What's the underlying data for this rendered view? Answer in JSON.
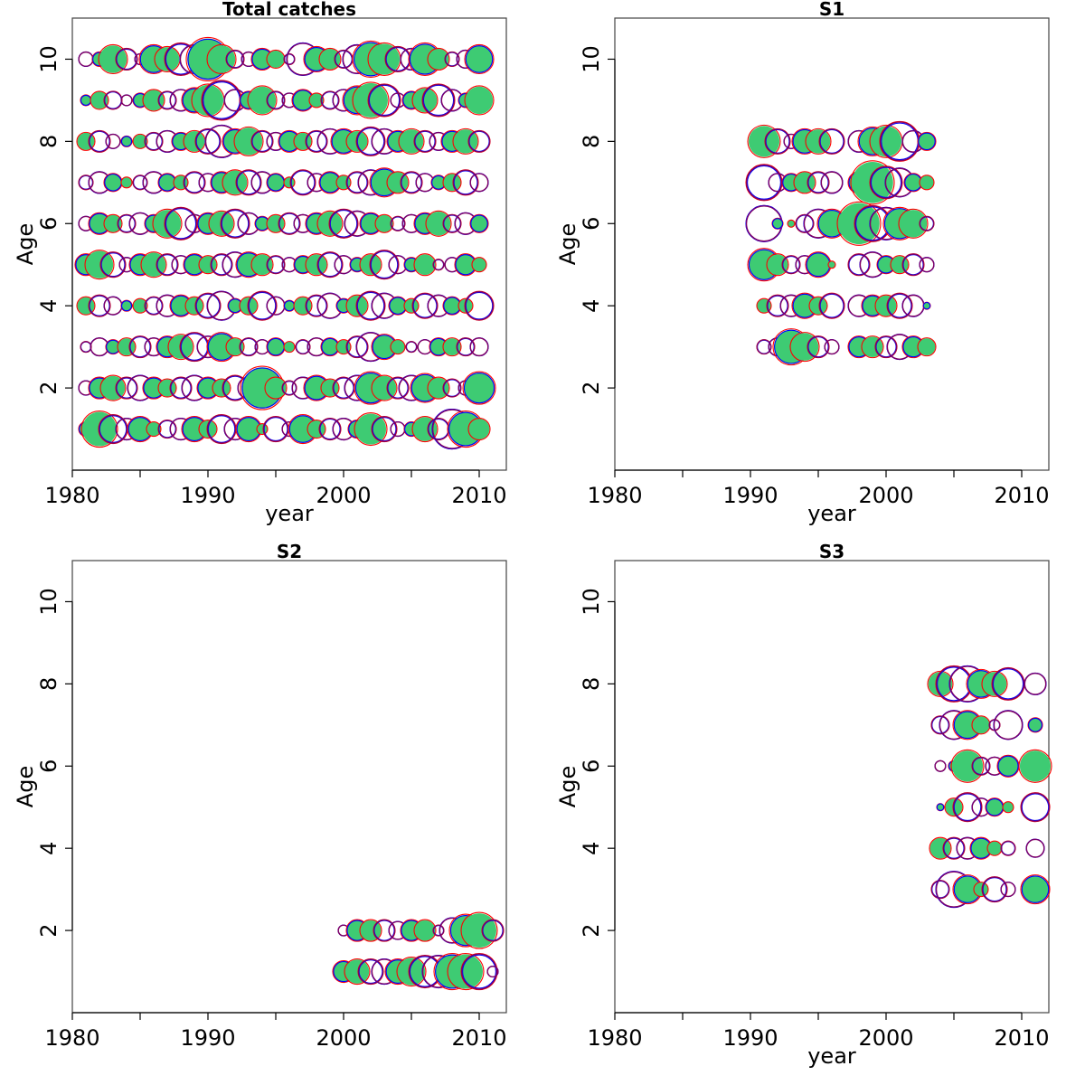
{
  "colors": {
    "filled": "#3ecb73",
    "observed": "#0000ff",
    "predicted": "#ff0000",
    "overlap": "#800060"
  },
  "chart_data": [
    {
      "type": "scatter",
      "subtype": "bubble",
      "title": "Total catches",
      "xlabel": "year",
      "ylabel": "Age",
      "xlim": [
        1980,
        2012
      ],
      "ylim": [
        0,
        11
      ],
      "xticks": [
        "1980",
        "1990",
        "2000",
        "2010"
      ],
      "yticks": [
        "2",
        "4",
        "6",
        "8",
        "10"
      ],
      "bubbles": {
        "years": [
          1981,
          1982,
          1983,
          1984,
          1985,
          1986,
          1987,
          1988,
          1989,
          1990,
          1991,
          1992,
          1993,
          1994,
          1995,
          1996,
          1997,
          1998,
          1999,
          2000,
          2001,
          2002,
          2003,
          2004,
          2005,
          2006,
          2007,
          2008,
          2009,
          2010
        ],
        "rows": [
          {
            "age": 1,
            "values": [
              0.4,
              1.0,
              0.8,
              0.6,
              0.7,
              0.4,
              0.5,
              0.6,
              0.7,
              0.5,
              0.8,
              0.6,
              0.7,
              0.3,
              0.7,
              0.4,
              0.8,
              0.5,
              0.6,
              0.6,
              0.5,
              0.9,
              0.7,
              0.4,
              0.4,
              0.7,
              0.6,
              1.1,
              1.0,
              0.6
            ]
          },
          {
            "age": 2,
            "values": [
              0.4,
              0.6,
              0.7,
              0.6,
              0.7,
              0.6,
              0.5,
              0.6,
              0.7,
              0.6,
              0.5,
              0.7,
              0.6,
              1.2,
              0.6,
              0.4,
              0.6,
              0.7,
              0.5,
              0.6,
              0.7,
              0.9,
              0.7,
              0.6,
              0.7,
              0.8,
              0.6,
              0.5,
              0.4,
              0.9
            ]
          },
          {
            "age": 3,
            "values": [
              0.3,
              0.5,
              0.4,
              0.5,
              0.6,
              0.5,
              0.6,
              0.7,
              0.8,
              0.6,
              0.8,
              0.5,
              0.5,
              0.4,
              0.5,
              0.3,
              0.4,
              0.5,
              0.5,
              0.4,
              0.6,
              0.8,
              0.7,
              0.4,
              0.3,
              0.4,
              0.5,
              0.5,
              0.5,
              0.5
            ]
          },
          {
            "age": 4,
            "values": [
              0.5,
              0.6,
              0.5,
              0.3,
              0.4,
              0.5,
              0.6,
              0.6,
              0.5,
              0.7,
              0.8,
              0.4,
              0.5,
              0.8,
              0.5,
              0.3,
              0.5,
              0.6,
              0.7,
              0.4,
              0.6,
              0.8,
              0.7,
              0.5,
              0.4,
              0.7,
              0.6,
              0.5,
              0.4,
              0.8
            ]
          },
          {
            "age": 5,
            "values": [
              0.6,
              0.8,
              0.7,
              0.4,
              0.6,
              0.7,
              0.6,
              0.5,
              0.6,
              0.5,
              0.6,
              0.7,
              0.7,
              0.6,
              0.5,
              0.4,
              0.5,
              0.6,
              0.7,
              0.5,
              0.4,
              0.6,
              0.8,
              0.5,
              0.4,
              0.6,
              0.3,
              0.4,
              0.6,
              0.4
            ]
          },
          {
            "age": 6,
            "values": [
              0.4,
              0.6,
              0.5,
              0.5,
              0.6,
              0.5,
              0.8,
              0.9,
              0.5,
              0.6,
              0.7,
              0.8,
              0.6,
              0.4,
              0.5,
              0.6,
              0.5,
              0.6,
              0.7,
              0.8,
              0.7,
              0.6,
              0.5,
              0.4,
              0.5,
              0.6,
              0.7,
              0.5,
              0.6,
              0.5
            ]
          },
          {
            "age": 7,
            "values": [
              0.4,
              0.6,
              0.5,
              0.3,
              0.4,
              0.6,
              0.5,
              0.4,
              0.6,
              0.5,
              0.6,
              0.7,
              0.7,
              0.6,
              0.5,
              0.3,
              0.7,
              0.5,
              0.6,
              0.4,
              0.6,
              0.7,
              0.8,
              0.6,
              0.6,
              0.5,
              0.4,
              0.5,
              0.7,
              0.5
            ]
          },
          {
            "age": 8,
            "values": [
              0.5,
              0.6,
              0.4,
              0.3,
              0.4,
              0.5,
              0.6,
              0.5,
              0.6,
              0.7,
              0.9,
              0.7,
              0.8,
              0.6,
              0.5,
              0.6,
              0.5,
              0.6,
              0.7,
              0.7,
              0.6,
              0.8,
              0.7,
              0.6,
              0.7,
              0.6,
              0.5,
              0.6,
              0.7,
              0.6
            ]
          },
          {
            "age": 9,
            "values": [
              0.3,
              0.5,
              0.5,
              0.3,
              0.4,
              0.6,
              0.5,
              0.6,
              0.7,
              0.9,
              1.1,
              0.6,
              0.5,
              0.8,
              0.5,
              0.4,
              0.6,
              0.4,
              0.5,
              0.6,
              0.8,
              1.0,
              0.9,
              0.4,
              0.5,
              0.7,
              0.9,
              0.6,
              0.4,
              0.8
            ]
          },
          {
            "age": 10,
            "values": [
              0.4,
              0.4,
              0.8,
              0.6,
              0.3,
              0.8,
              0.7,
              0.9,
              0.8,
              1.2,
              0.8,
              0.5,
              0.4,
              0.6,
              0.5,
              0.3,
              0.9,
              0.7,
              0.6,
              0.5,
              0.8,
              1.0,
              0.9,
              0.7,
              0.6,
              0.9,
              0.6,
              0.4,
              0.5,
              0.8
            ]
          }
        ]
      }
    },
    {
      "type": "scatter",
      "subtype": "bubble",
      "title": "S1",
      "xlabel": "year",
      "ylabel": "Age",
      "xlim": [
        1980,
        2012
      ],
      "ylim": [
        0,
        11
      ],
      "xticks": [
        "1980",
        "1990",
        "2000",
        "2010"
      ],
      "yticks": [
        "2",
        "4",
        "6",
        "8",
        "10"
      ],
      "bubbles": {
        "years": [
          1991,
          1992,
          1993,
          1994,
          1995,
          1996,
          1998,
          1999,
          2000,
          2001,
          2002,
          2003
        ],
        "rows": [
          {
            "age": 3,
            "values": [
              0.4,
              0.5,
              1.0,
              0.8,
              0.6,
              0.4,
              0.6,
              0.6,
              0.6,
              0.7,
              0.6,
              0.5
            ]
          },
          {
            "age": 4,
            "values": [
              0.4,
              0.6,
              0.6,
              0.7,
              0.5,
              0.7,
              0.6,
              0.6,
              0.6,
              0.7,
              0.6,
              0.2
            ]
          },
          {
            "age": 5,
            "values": [
              0.9,
              0.6,
              0.5,
              0.5,
              0.7,
              0.2,
              0.6,
              0.7,
              0.5,
              0.5,
              0.6,
              0.4
            ]
          },
          {
            "age": 6,
            "values": [
              1.0,
              0.3,
              0.2,
              0.5,
              0.8,
              0.8,
              1.2,
              1.0,
              0.9,
              0.9,
              0.8,
              0.4
            ]
          },
          {
            "age": 7,
            "values": [
              1.0,
              0.5,
              0.5,
              0.6,
              0.6,
              0.6,
              0.6,
              1.2,
              0.9,
              0.8,
              0.5,
              0.4
            ]
          },
          {
            "age": 8,
            "values": [
              0.9,
              0.7,
              0.4,
              0.7,
              0.7,
              0.7,
              0.6,
              0.8,
              0.9,
              1.1,
              0.6,
              0.5
            ]
          }
        ]
      }
    },
    {
      "type": "scatter",
      "subtype": "bubble",
      "title": "S2",
      "xlabel": "",
      "ylabel": "Age",
      "xlim": [
        1980,
        2012
      ],
      "ylim": [
        0,
        11
      ],
      "xticks": [
        "1980",
        "1990",
        "2000",
        "2010"
      ],
      "yticks": [
        "2",
        "4",
        "6",
        "8",
        "10"
      ],
      "bubbles": {
        "years": [
          2000,
          2001,
          2002,
          2003,
          2004,
          2005,
          2006,
          2007,
          2008,
          2009,
          2010,
          2011
        ],
        "rows": [
          {
            "age": 1,
            "values": [
              0.6,
              0.7,
              0.7,
              0.7,
              0.7,
              0.8,
              0.9,
              0.9,
              1.0,
              1.0,
              1.0,
              0.3
            ]
          },
          {
            "age": 2,
            "values": [
              0.3,
              0.6,
              0.6,
              0.6,
              0.5,
              0.6,
              0.6,
              0.3,
              0.7,
              0.9,
              1.0,
              0.6
            ]
          }
        ]
      }
    },
    {
      "type": "scatter",
      "subtype": "bubble",
      "title": "S3",
      "xlabel": "year",
      "ylabel": "Age",
      "xlim": [
        1980,
        2012
      ],
      "ylim": [
        0,
        11
      ],
      "xticks": [
        "1980",
        "1990",
        "2000",
        "2010"
      ],
      "yticks": [
        "2",
        "4",
        "6",
        "8",
        "10"
      ],
      "bubbles": {
        "years": [
          2004,
          2005,
          2006,
          2007,
          2008,
          2009,
          2011
        ],
        "rows": [
          {
            "age": 3,
            "values": [
              0.5,
              1.0,
              0.8,
              0.4,
              0.7,
              0.4,
              0.8
            ]
          },
          {
            "age": 4,
            "values": [
              0.6,
              0.6,
              0.6,
              0.6,
              0.4,
              0.4,
              0.5
            ]
          },
          {
            "age": 5,
            "values": [
              0.2,
              0.5,
              0.8,
              0.5,
              0.5,
              0.3,
              0.8
            ]
          },
          {
            "age": 6,
            "values": [
              0.3,
              0.3,
              0.9,
              0.5,
              0.5,
              0.6,
              0.9
            ]
          },
          {
            "age": 7,
            "values": [
              0.5,
              0.8,
              0.8,
              0.5,
              0.3,
              0.8,
              0.4
            ]
          },
          {
            "age": 8,
            "values": [
              0.7,
              1.0,
              1.0,
              0.8,
              0.7,
              0.9,
              0.6
            ]
          }
        ]
      }
    }
  ]
}
